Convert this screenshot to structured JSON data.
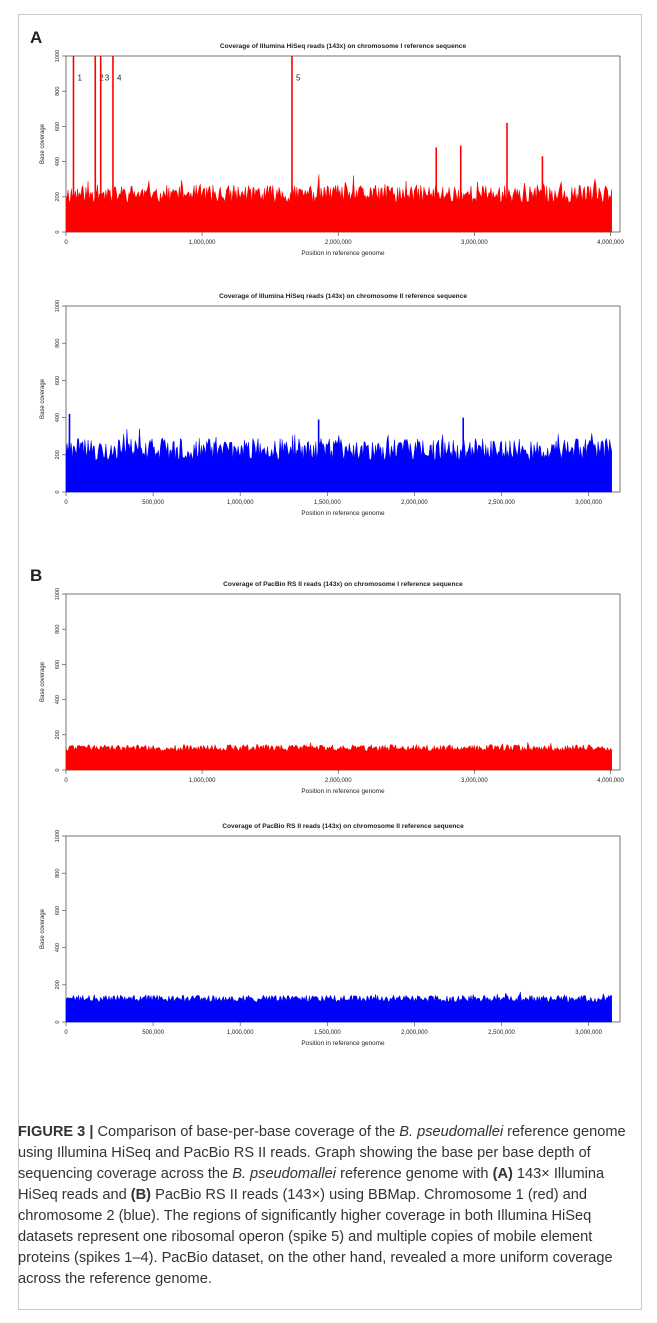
{
  "panels": {
    "a": "A",
    "b": "B"
  },
  "chart_data": [
    {
      "type": "area",
      "title": "Coverage of Illumina HiSeq reads (143x) on chromosome I reference sequence",
      "xlabel": "Position in reference genome",
      "ylabel": "Base coverage",
      "xlim": [
        0,
        4070000
      ],
      "ylim": [
        0,
        1000
      ],
      "xticks": [
        "0",
        "1,000,000",
        "2,000,000",
        "3,000,000",
        "4,000,000"
      ],
      "xtick_values": [
        0,
        1000000,
        2000000,
        3000000,
        4000000
      ],
      "yticks": [
        0,
        200,
        400,
        600,
        800,
        1000
      ],
      "color": "#ff0000",
      "baseline_coverage": 200,
      "noise_amplitude": 70,
      "spikes": [
        {
          "label": "1",
          "x": 55000,
          "y": 1000
        },
        {
          "label": "2",
          "x": 215000,
          "y": 1000
        },
        {
          "label": "3",
          "x": 255000,
          "y": 1000
        },
        {
          "label": "4",
          "x": 345000,
          "y": 1000
        },
        {
          "label": "5",
          "x": 1660000,
          "y": 1000
        },
        {
          "label": "",
          "x": 2720000,
          "y": 480
        },
        {
          "label": "",
          "x": 2900000,
          "y": 490
        },
        {
          "label": "",
          "x": 3240000,
          "y": 620
        },
        {
          "label": "",
          "x": 3500000,
          "y": 430
        }
      ]
    },
    {
      "type": "area",
      "title": "Coverage of Illumina HiSeq reads (143x) on chromosome II reference sequence",
      "xlabel": "Position in reference genome",
      "ylabel": "Base coverage",
      "xlim": [
        0,
        3180000
      ],
      "ylim": [
        0,
        1000
      ],
      "xticks": [
        "0",
        "500,000",
        "1,000,000",
        "1,500,000",
        "2,000,000",
        "2,500,000",
        "3,000,000"
      ],
      "xtick_values": [
        0,
        500000,
        1000000,
        1500000,
        2000000,
        2500000,
        3000000
      ],
      "yticks": [
        0,
        200,
        400,
        600,
        800,
        1000
      ],
      "color": "#0000ff",
      "baseline_coverage": 210,
      "noise_amplitude": 80,
      "spikes": [
        {
          "label": "",
          "x": 20000,
          "y": 420
        },
        {
          "label": "",
          "x": 1450000,
          "y": 390
        },
        {
          "label": "",
          "x": 2280000,
          "y": 400
        }
      ]
    },
    {
      "type": "area",
      "title": "Coverage of PacBio RS II reads (143x) on chromosome I reference sequence",
      "xlabel": "Position in reference genome",
      "ylabel": "Base coverage",
      "xlim": [
        0,
        4070000
      ],
      "ylim": [
        0,
        1000
      ],
      "xticks": [
        "0",
        "1,000,000",
        "2,000,000",
        "3,000,000",
        "4,000,000"
      ],
      "xtick_values": [
        0,
        1000000,
        2000000,
        3000000,
        4000000
      ],
      "yticks": [
        0,
        200,
        400,
        600,
        800,
        1000
      ],
      "color": "#ff0000",
      "baseline_coverage": 120,
      "noise_amplitude": 25,
      "spikes": []
    },
    {
      "type": "area",
      "title": "Coverage of PacBio RS II reads (143x) on chromosome II reference sequence",
      "xlabel": "Position in reference genome",
      "ylabel": "Base coverage",
      "xlim": [
        0,
        3180000
      ],
      "ylim": [
        0,
        1000
      ],
      "xticks": [
        "0",
        "500,000",
        "1,000,000",
        "1,500,000",
        "2,000,000",
        "2,500,000",
        "3,000,000"
      ],
      "xtick_values": [
        0,
        500000,
        1000000,
        1500000,
        2000000,
        2500000,
        3000000
      ],
      "yticks": [
        0,
        200,
        400,
        600,
        800,
        1000
      ],
      "color": "#0000ff",
      "baseline_coverage": 120,
      "noise_amplitude": 25,
      "spikes": []
    }
  ],
  "caption": {
    "figure_label": "FIGURE 3 |",
    "t1": " Comparison of base-per-base coverage of the ",
    "species1": "B. pseudomallei",
    "t2": " reference genome using Illumina HiSeq and PacBio RS II reads. Graph showing the base per base depth of sequencing coverage across the ",
    "species2": "B. pseudomallei",
    "t3": " reference genome with ",
    "a": "(A)",
    "t4": " 143× Illumina HiSeq reads and ",
    "b": "(B)",
    "t5": " PacBio RS II reads (143×) using BBMap. Chromosome 1 (red) and chromosome 2 (blue). The regions of significantly higher coverage in both Illumina HiSeq datasets represent one ribosomal operon (spike 5) and multiple copies of mobile element proteins (spikes 1–4). PacBio dataset, on the other hand, revealed a more uniform coverage across the reference genome."
  }
}
